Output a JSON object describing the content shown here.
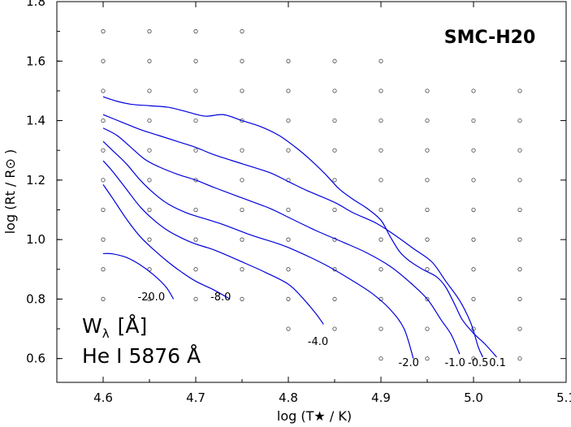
{
  "chart_data": {
    "type": "contour",
    "title": "SMC-H20",
    "xlabel": "log (T★ / K)",
    "ylabel": "log (Rt / R⊙ )",
    "xlim": [
      4.55,
      5.1
    ],
    "ylim": [
      0.52,
      1.8
    ],
    "x_ticks": [
      4.6,
      4.7,
      4.8,
      4.9,
      5.0,
      5.1
    ],
    "x_tick_labels": [
      "4.6",
      "4.7",
      "4.8",
      "4.9",
      "5.0",
      "5.1"
    ],
    "y_ticks": [
      0.6,
      0.8,
      1.0,
      1.2,
      1.4,
      1.6,
      1.8
    ],
    "y_tick_labels": [
      "0.6",
      "0.8",
      "1.0",
      "1.2",
      "1.4",
      "1.6",
      "1.8"
    ],
    "line_label": {
      "quantity": "W",
      "subscript": "λ",
      "unit": "[Å]",
      "line": "He I 5876 Å"
    },
    "grid_points": [
      {
        "x": 4.6,
        "y": [
          0.8,
          0.9,
          1.0,
          1.1,
          1.2,
          1.3,
          1.4,
          1.5,
          1.6,
          1.7
        ]
      },
      {
        "x": 4.65,
        "y": [
          0.8,
          0.9,
          1.0,
          1.1,
          1.2,
          1.3,
          1.4,
          1.5,
          1.6,
          1.7
        ]
      },
      {
        "x": 4.7,
        "y": [
          0.8,
          0.9,
          1.0,
          1.1,
          1.2,
          1.3,
          1.4,
          1.5,
          1.6,
          1.7
        ]
      },
      {
        "x": 4.75,
        "y": [
          0.8,
          0.9,
          1.0,
          1.1,
          1.2,
          1.3,
          1.4,
          1.5,
          1.6,
          1.7
        ]
      },
      {
        "x": 4.8,
        "y": [
          0.7,
          0.8,
          0.9,
          1.0,
          1.1,
          1.2,
          1.3,
          1.4,
          1.5,
          1.6
        ]
      },
      {
        "x": 4.85,
        "y": [
          0.7,
          0.8,
          0.9,
          1.0,
          1.1,
          1.2,
          1.3,
          1.4,
          1.5,
          1.6
        ]
      },
      {
        "x": 4.9,
        "y": [
          0.6,
          0.7,
          0.8,
          0.9,
          1.0,
          1.1,
          1.2,
          1.3,
          1.4,
          1.5,
          1.6
        ]
      },
      {
        "x": 4.95,
        "y": [
          0.6,
          0.7,
          0.8,
          0.9,
          1.0,
          1.1,
          1.2,
          1.3,
          1.4,
          1.5
        ]
      },
      {
        "x": 5.0,
        "y": [
          0.6,
          0.7,
          0.8,
          0.9,
          1.0,
          1.1,
          1.2,
          1.3,
          1.4,
          1.5
        ]
      },
      {
        "x": 5.05,
        "y": [
          0.6,
          0.7,
          0.8,
          0.9,
          1.0,
          1.1,
          1.2,
          1.3,
          1.4,
          1.5
        ]
      }
    ],
    "series": [
      {
        "label": "-20.0",
        "label_at": [
          4.652,
          0.795
        ],
        "points": [
          [
            4.6,
            0.953
          ],
          [
            4.61,
            0.952
          ],
          [
            4.625,
            0.94
          ],
          [
            4.64,
            0.915
          ],
          [
            4.655,
            0.88
          ],
          [
            4.668,
            0.84
          ],
          [
            4.676,
            0.8
          ]
        ]
      },
      {
        "label": "-8.0",
        "label_at": [
          4.727,
          0.795
        ],
        "points": [
          [
            4.6,
            1.185
          ],
          [
            4.61,
            1.14
          ],
          [
            4.625,
            1.07
          ],
          [
            4.64,
            1.01
          ],
          [
            4.655,
            0.965
          ],
          [
            4.67,
            0.925
          ],
          [
            4.685,
            0.89
          ],
          [
            4.7,
            0.86
          ],
          [
            4.72,
            0.83
          ],
          [
            4.737,
            0.8
          ]
        ]
      },
      {
        "label": "-4.0",
        "label_at": [
          4.832,
          0.645
        ],
        "points": [
          [
            4.6,
            1.265
          ],
          [
            4.61,
            1.23
          ],
          [
            4.625,
            1.17
          ],
          [
            4.64,
            1.11
          ],
          [
            4.655,
            1.065
          ],
          [
            4.67,
            1.03
          ],
          [
            4.685,
            1.005
          ],
          [
            4.7,
            0.985
          ],
          [
            4.72,
            0.965
          ],
          [
            4.75,
            0.925
          ],
          [
            4.775,
            0.89
          ],
          [
            4.8,
            0.85
          ],
          [
            4.815,
            0.805
          ],
          [
            4.83,
            0.75
          ],
          [
            4.838,
            0.715
          ]
        ]
      },
      {
        "label": "-2.0",
        "label_at": [
          4.93,
          0.575
        ],
        "points": [
          [
            4.6,
            1.33
          ],
          [
            4.61,
            1.3
          ],
          [
            4.625,
            1.255
          ],
          [
            4.64,
            1.2
          ],
          [
            4.655,
            1.155
          ],
          [
            4.67,
            1.12
          ],
          [
            4.69,
            1.09
          ],
          [
            4.71,
            1.07
          ],
          [
            4.73,
            1.05
          ],
          [
            4.76,
            1.015
          ],
          [
            4.79,
            0.985
          ],
          [
            4.81,
            0.96
          ],
          [
            4.84,
            0.915
          ],
          [
            4.865,
            0.87
          ],
          [
            4.89,
            0.82
          ],
          [
            4.91,
            0.765
          ],
          [
            4.925,
            0.7
          ],
          [
            4.935,
            0.6
          ]
        ]
      },
      {
        "label": "-1.0",
        "label_at": [
          4.98,
          0.575
        ],
        "points": [
          [
            4.6,
            1.375
          ],
          [
            4.615,
            1.35
          ],
          [
            4.63,
            1.31
          ],
          [
            4.645,
            1.27
          ],
          [
            4.66,
            1.245
          ],
          [
            4.68,
            1.22
          ],
          [
            4.7,
            1.2
          ],
          [
            4.72,
            1.175
          ],
          [
            4.75,
            1.14
          ],
          [
            4.78,
            1.105
          ],
          [
            4.8,
            1.075
          ],
          [
            4.83,
            1.03
          ],
          [
            4.86,
            0.99
          ],
          [
            4.885,
            0.955
          ],
          [
            4.91,
            0.91
          ],
          [
            4.93,
            0.86
          ],
          [
            4.95,
            0.8
          ],
          [
            4.965,
            0.73
          ],
          [
            4.976,
            0.68
          ],
          [
            4.985,
            0.615
          ]
        ]
      },
      {
        "label": "-0.5",
        "label_at": [
          5.005,
          0.575
        ],
        "points": [
          [
            4.6,
            1.42
          ],
          [
            4.62,
            1.395
          ],
          [
            4.64,
            1.37
          ],
          [
            4.66,
            1.35
          ],
          [
            4.68,
            1.33
          ],
          [
            4.7,
            1.31
          ],
          [
            4.72,
            1.285
          ],
          [
            4.75,
            1.255
          ],
          [
            4.78,
            1.225
          ],
          [
            4.8,
            1.195
          ],
          [
            4.82,
            1.165
          ],
          [
            4.85,
            1.125
          ],
          [
            4.87,
            1.09
          ],
          [
            4.895,
            1.055
          ],
          [
            4.915,
            1.015
          ],
          [
            4.935,
            0.97
          ],
          [
            4.955,
            0.925
          ],
          [
            4.97,
            0.86
          ],
          [
            4.985,
            0.795
          ],
          [
            4.997,
            0.72
          ],
          [
            5.005,
            0.64
          ],
          [
            5.01,
            0.605
          ]
        ]
      },
      {
        "label": "0.1",
        "label_at": [
          5.026,
          0.575
        ],
        "points": [
          [
            4.6,
            1.48
          ],
          [
            4.615,
            1.465
          ],
          [
            4.63,
            1.455
          ],
          [
            4.65,
            1.45
          ],
          [
            4.67,
            1.445
          ],
          [
            4.69,
            1.43
          ],
          [
            4.71,
            1.415
          ],
          [
            4.73,
            1.42
          ],
          [
            4.75,
            1.4
          ],
          [
            4.77,
            1.38
          ],
          [
            4.79,
            1.35
          ],
          [
            4.81,
            1.305
          ],
          [
            4.825,
            1.265
          ],
          [
            4.84,
            1.22
          ],
          [
            4.855,
            1.17
          ],
          [
            4.87,
            1.135
          ],
          [
            4.885,
            1.105
          ],
          [
            4.9,
            1.065
          ],
          [
            4.91,
            1.01
          ],
          [
            4.92,
            0.96
          ],
          [
            4.93,
            0.93
          ],
          [
            4.945,
            0.9
          ],
          [
            4.96,
            0.875
          ],
          [
            4.97,
            0.84
          ],
          [
            4.98,
            0.78
          ],
          [
            4.988,
            0.73
          ],
          [
            5.0,
            0.685
          ],
          [
            5.012,
            0.65
          ],
          [
            5.025,
            0.605
          ]
        ]
      }
    ]
  }
}
